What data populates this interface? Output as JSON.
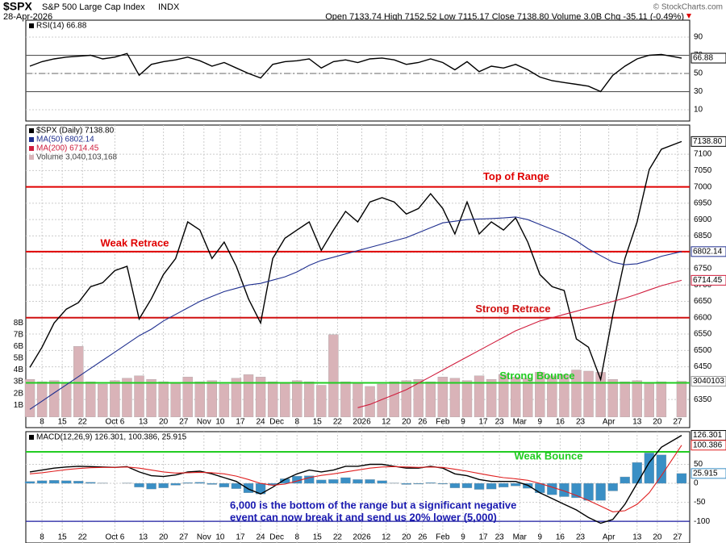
{
  "header": {
    "symbol": "$SPX",
    "name": "S&P 500 Large Cap Index",
    "exchange": "INDX",
    "date": "28-Apr-2026",
    "quote": "Open 7133.74 High 7152.52 Low 7115.17 Close 7138.80 Volume 3.0B Chg -35.11 (-0.49%)",
    "credit": "© StockCharts.com"
  },
  "chart_data": [
    {
      "type": "line",
      "xlim": [
        -1,
        163
      ],
      "x": [
        0,
        3,
        6,
        9,
        12,
        15,
        18,
        21,
        24,
        27,
        30,
        33,
        36,
        39,
        42,
        45,
        48,
        51,
        54,
        57,
        60,
        63,
        66,
        69,
        72,
        75,
        78,
        81,
        84,
        87,
        90,
        93,
        96,
        99,
        102,
        105,
        108,
        111,
        114,
        117,
        120,
        123,
        126,
        129,
        132,
        135,
        138,
        141,
        144,
        147,
        150,
        153,
        156,
        161
      ],
      "ylim": [
        -2.4,
        108.7
      ],
      "yticks": [
        10,
        30,
        50,
        70,
        90
      ],
      "grid": true,
      "lines": [
        {
          "value": 70,
          "color": "#555555"
        },
        {
          "value": 30,
          "color": "#555555"
        },
        {
          "value": 50,
          "color": "#777777",
          "dash": true
        }
      ],
      "series": [
        {
          "name": "RSI(14) 66.88",
          "color": "#000000",
          "style": "line",
          "tag": "66.88",
          "values": [
            58,
            63,
            66,
            68,
            69,
            70,
            66,
            68,
            72,
            48,
            60,
            63,
            65,
            68,
            64,
            58,
            62,
            56,
            50,
            45,
            60,
            63,
            64,
            66,
            56,
            63,
            65,
            62,
            66,
            67,
            65,
            60,
            62,
            66,
            62,
            54,
            63,
            52,
            58,
            56,
            60,
            54,
            46,
            42,
            40,
            38,
            36,
            30,
            48,
            58,
            66,
            70,
            71,
            66.88
          ]
        }
      ]
    },
    {
      "type": "line",
      "xlim": [
        -1,
        163
      ],
      "x": [
        0,
        3,
        6,
        9,
        12,
        15,
        18,
        21,
        24,
        27,
        30,
        33,
        36,
        39,
        42,
        45,
        48,
        51,
        54,
        57,
        60,
        63,
        66,
        69,
        72,
        75,
        78,
        81,
        84,
        87,
        90,
        93,
        96,
        99,
        102,
        105,
        108,
        111,
        114,
        117,
        120,
        123,
        126,
        129,
        132,
        135,
        138,
        141,
        144,
        147,
        150,
        153,
        156,
        161
      ],
      "ylim": [
        6264,
        7189
      ],
      "yticks": [
        6350,
        6400,
        6450,
        6500,
        6550,
        6600,
        6650,
        6700,
        6750,
        6800,
        6850,
        6900,
        6950,
        7000,
        7050,
        7100
      ],
      "y2lim": [
        -0.9,
        24.8
      ],
      "y2ticks": [
        {
          "value": 1,
          "label": "1B"
        },
        {
          "value": 2,
          "label": "2B"
        },
        {
          "value": 3,
          "label": "3B"
        },
        {
          "value": 4,
          "label": "4B"
        },
        {
          "value": 5,
          "label": "5B"
        },
        {
          "value": 6,
          "label": "6B"
        },
        {
          "value": 7,
          "label": "7B"
        },
        {
          "value": 8,
          "label": "8B"
        }
      ],
      "grid": true,
      "xticks": [
        {
          "value": 3,
          "label": "8"
        },
        {
          "value": 8,
          "label": "15"
        },
        {
          "value": 13,
          "label": "22"
        },
        {
          "value": 21,
          "label": "Oct 6"
        },
        {
          "value": 28,
          "label": "13"
        },
        {
          "value": 33,
          "label": "20"
        },
        {
          "value": 38,
          "label": "27"
        },
        {
          "value": 43,
          "label": "Nov"
        },
        {
          "value": 47,
          "label": "10"
        },
        {
          "value": 52,
          "label": "17"
        },
        {
          "value": 57,
          "label": "24"
        },
        {
          "value": 61,
          "label": "Dec"
        },
        {
          "value": 66,
          "label": "8"
        },
        {
          "value": 71,
          "label": "15"
        },
        {
          "value": 76,
          "label": "22"
        },
        {
          "value": 82,
          "label": "2026"
        },
        {
          "value": 88,
          "label": "12"
        },
        {
          "value": 93,
          "label": "20"
        },
        {
          "value": 97,
          "label": "26"
        },
        {
          "value": 102,
          "label": "Feb"
        },
        {
          "value": 107,
          "label": "9"
        },
        {
          "value": 112,
          "label": "17"
        },
        {
          "value": 116,
          "label": "23"
        },
        {
          "value": 121,
          "label": "Mar"
        },
        {
          "value": 126,
          "label": "9"
        },
        {
          "value": 131,
          "label": "16"
        },
        {
          "value": 136,
          "label": "23"
        },
        {
          "value": 143,
          "label": "Apr"
        },
        {
          "value": 150,
          "label": "13"
        },
        {
          "value": 155,
          "label": "20"
        },
        {
          "value": 160,
          "label": "27"
        }
      ],
      "lines": [
        {
          "value": 7000,
          "label": "Top of Range",
          "color": "#e00000"
        },
        {
          "value": 6802,
          "label": "Weak Retrace",
          "color": "#e00000"
        },
        {
          "value": 6600,
          "label": "Strong Retrace",
          "color": "#d01010"
        },
        {
          "value": 6401,
          "label": "Strong Bounce",
          "color": "#22cc22"
        }
      ],
      "series": [
        {
          "name": "$SPX (Daily) 7138.80",
          "color": "#000000",
          "style": "line",
          "tag": "7138.80",
          "values": [
            6448,
            6510,
            6584,
            6626,
            6646,
            6695,
            6707,
            6744,
            6757,
            6596,
            6658,
            6732,
            6781,
            6893,
            6868,
            6781,
            6831,
            6757,
            6658,
            6584,
            6781,
            6843,
            6868,
            6893,
            6806,
            6868,
            6925,
            6893,
            6954,
            6967,
            6954,
            6917,
            6934,
            6979,
            6934,
            6856,
            6954,
            6856,
            6893,
            6868,
            6905,
            6831,
            6732,
            6695,
            6683,
            6535,
            6510,
            6411,
            6609,
            6781,
            6893,
            7053,
            7115,
            7138.8
          ]
        },
        {
          "name": "MA(50) 6802.14",
          "color": "#1f2f8f",
          "style": "line",
          "tag": "6802.14",
          "values": [
            6320,
            6345,
            6370,
            6395,
            6420,
            6445,
            6470,
            6495,
            6520,
            6545,
            6565,
            6590,
            6610,
            6630,
            6650,
            6665,
            6680,
            6690,
            6700,
            6705,
            6715,
            6725,
            6740,
            6760,
            6775,
            6785,
            6795,
            6805,
            6815,
            6825,
            6835,
            6845,
            6860,
            6875,
            6890,
            6895,
            6900,
            6902,
            6903,
            6905,
            6908,
            6900,
            6885,
            6870,
            6855,
            6835,
            6810,
            6790,
            6770,
            6762,
            6765,
            6775,
            6788,
            6802.14
          ]
        },
        {
          "name": "MA(200) 6714.45",
          "color": "#d01c3c",
          "style": "line",
          "tag": "6714.45",
          "values": [
            null,
            null,
            null,
            null,
            null,
            null,
            null,
            null,
            null,
            null,
            null,
            null,
            null,
            null,
            null,
            null,
            null,
            null,
            null,
            null,
            null,
            null,
            null,
            null,
            null,
            null,
            null,
            6325,
            6335,
            6350,
            6365,
            6380,
            6400,
            6420,
            6440,
            6460,
            6480,
            6500,
            6520,
            6540,
            6560,
            6575,
            6590,
            6600,
            6610,
            6620,
            6630,
            6640,
            6650,
            6660,
            6672,
            6685,
            6698,
            6714.45
          ]
        },
        {
          "name": "Volume 3,040,103,168",
          "color": "#d9b3b8",
          "style": "bar",
          "axis": "y2",
          "tag": "3040103",
          "values": [
            3.2,
            3.0,
            3.1,
            2.9,
            6.0,
            3.0,
            2.8,
            3.1,
            3.3,
            3.5,
            3.2,
            3.0,
            2.9,
            3.4,
            3.0,
            3.1,
            2.8,
            3.3,
            3.6,
            3.4,
            3.0,
            2.9,
            3.1,
            3.0,
            2.7,
            7.0,
            3.0,
            2.9,
            2.6,
            2.8,
            3.0,
            3.1,
            3.2,
            3.0,
            3.4,
            3.3,
            3.1,
            3.5,
            3.2,
            3.6,
            3.4,
            3.3,
            3.8,
            3.5,
            3.6,
            4.0,
            3.9,
            3.8,
            3.2,
            3.0,
            3.1,
            2.9,
            3.0,
            3.04
          ]
        }
      ]
    },
    {
      "type": "line",
      "xlim": [
        -1,
        163
      ],
      "x": [
        0,
        3,
        6,
        9,
        12,
        15,
        18,
        21,
        24,
        27,
        30,
        33,
        36,
        39,
        42,
        45,
        48,
        51,
        54,
        57,
        60,
        63,
        66,
        69,
        72,
        75,
        78,
        81,
        84,
        87,
        90,
        93,
        96,
        99,
        102,
        105,
        108,
        111,
        114,
        117,
        120,
        123,
        126,
        129,
        132,
        135,
        138,
        141,
        144,
        147,
        150,
        153,
        156,
        161
      ],
      "ylim": [
        -157,
        136
      ],
      "yticks": [
        50,
        0,
        -50,
        -100
      ],
      "grid": true,
      "xticks": [
        {
          "value": 3,
          "label": "8"
        },
        {
          "value": 8,
          "label": "15"
        },
        {
          "value": 13,
          "label": "22"
        },
        {
          "value": 21,
          "label": "Oct 6"
        },
        {
          "value": 28,
          "label": "13"
        },
        {
          "value": 33,
          "label": "20"
        },
        {
          "value": 38,
          "label": "27"
        },
        {
          "value": 43,
          "label": "Nov"
        },
        {
          "value": 47,
          "label": "10"
        },
        {
          "value": 52,
          "label": "17"
        },
        {
          "value": 57,
          "label": "24"
        },
        {
          "value": 61,
          "label": "Dec"
        },
        {
          "value": 66,
          "label": "8"
        },
        {
          "value": 71,
          "label": "15"
        },
        {
          "value": 76,
          "label": "22"
        },
        {
          "value": 82,
          "label": "2026"
        },
        {
          "value": 88,
          "label": "12"
        },
        {
          "value": 93,
          "label": "20"
        },
        {
          "value": 97,
          "label": "26"
        },
        {
          "value": 102,
          "label": "Feb"
        },
        {
          "value": 107,
          "label": "9"
        },
        {
          "value": 112,
          "label": "17"
        },
        {
          "value": 116,
          "label": "23"
        },
        {
          "value": 121,
          "label": "Mar"
        },
        {
          "value": 126,
          "label": "9"
        },
        {
          "value": 131,
          "label": "16"
        },
        {
          "value": 136,
          "label": "23"
        },
        {
          "value": 143,
          "label": "Apr"
        },
        {
          "value": 150,
          "label": "13"
        },
        {
          "value": 155,
          "label": "20"
        },
        {
          "value": 160,
          "label": "27"
        }
      ],
      "lines": [
        {
          "value": 83,
          "label": "Weak Bounce",
          "color": "#22cc22"
        },
        {
          "value": -100,
          "color": "#1a1aa0"
        }
      ],
      "note": [
        "6,000 is the bottom of the range but a significant negative",
        "event can now break it and send us 20% lower (5,000)"
      ],
      "series": [
        {
          "name": "MACD(12,26,9) 126.301, 100.386, 25.915",
          "color": "#000000",
          "style": "line",
          "tag": "126.301",
          "values": [
            30,
            35,
            40,
            43,
            45,
            44,
            43,
            42,
            44,
            30,
            20,
            18,
            22,
            30,
            32,
            25,
            15,
            5,
            -15,
            -28,
            -10,
            10,
            25,
            35,
            30,
            35,
            45,
            45,
            50,
            50,
            45,
            40,
            40,
            45,
            40,
            25,
            20,
            10,
            5,
            5,
            5,
            -5,
            -25,
            -40,
            -55,
            -70,
            -90,
            -105,
            -95,
            -55,
            0,
            55,
            95,
            126.301
          ]
        },
        {
          "color": "#e02020",
          "style": "line",
          "tag": "100.386",
          "values": [
            25,
            28,
            32,
            36,
            39,
            41,
            42,
            42,
            43,
            40,
            35,
            30,
            27,
            28,
            29,
            28,
            25,
            19,
            10,
            0,
            -5,
            -2,
            6,
            15,
            21,
            25,
            30,
            35,
            40,
            43,
            44,
            43,
            42,
            43,
            42,
            37,
            32,
            26,
            20,
            15,
            12,
            8,
            0,
            -10,
            -20,
            -32,
            -45,
            -60,
            -75,
            -72,
            -55,
            -25,
            20,
            100.386
          ]
        },
        {
          "color": "#3a8fc5",
          "style": "bar",
          "tag": "25.915",
          "values": [
            5,
            7,
            8,
            7,
            6,
            3,
            1,
            0,
            1,
            -10,
            -15,
            -12,
            -5,
            2,
            3,
            -3,
            -10,
            -14,
            -25,
            -28,
            -5,
            12,
            19,
            20,
            9,
            10,
            15,
            10,
            10,
            7,
            1,
            -3,
            -2,
            2,
            -2,
            -12,
            -12,
            -16,
            -15,
            -10,
            -7,
            -13,
            -25,
            -30,
            -35,
            -38,
            -45,
            -45,
            -20,
            17,
            55,
            80,
            75,
            25.915
          ]
        }
      ]
    }
  ]
}
